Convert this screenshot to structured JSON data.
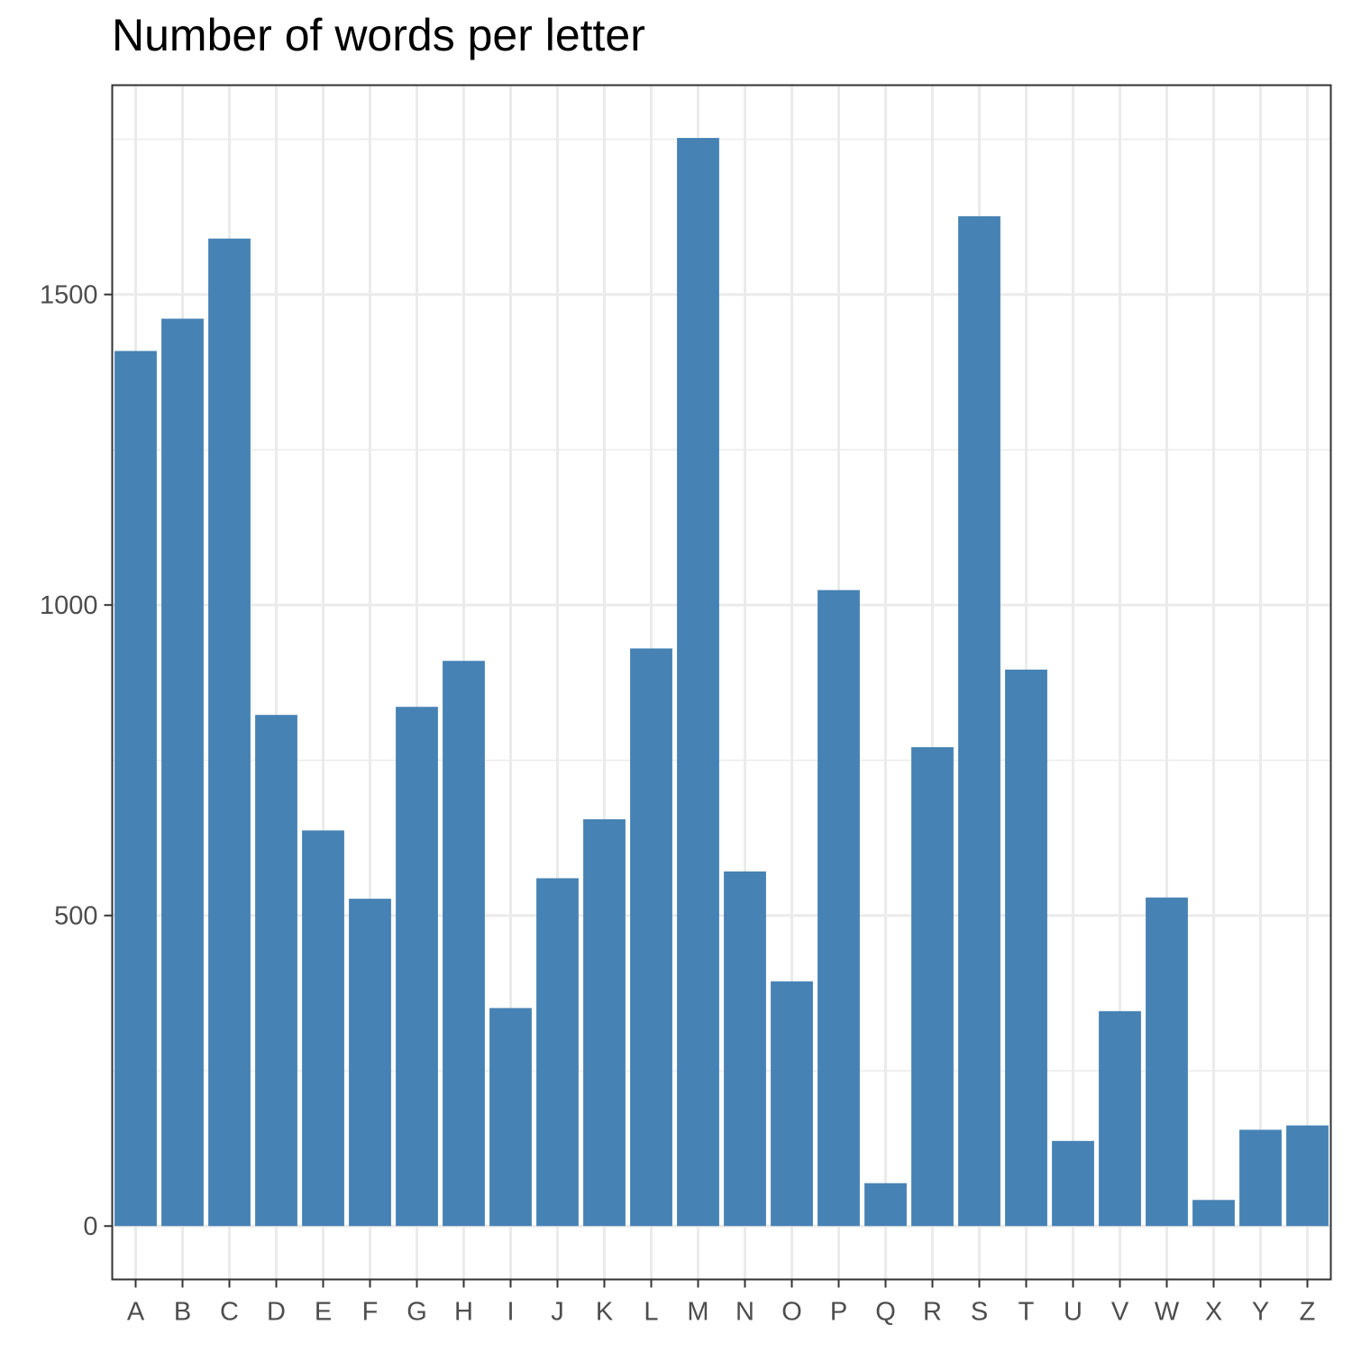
{
  "chart_data": {
    "type": "bar",
    "title": "Number of words per letter",
    "xlabel": "",
    "ylabel": "",
    "categories": [
      "A",
      "B",
      "C",
      "D",
      "E",
      "F",
      "G",
      "H",
      "I",
      "J",
      "K",
      "L",
      "M",
      "N",
      "O",
      "P",
      "Q",
      "R",
      "S",
      "T",
      "U",
      "V",
      "W",
      "X",
      "Y",
      "Z"
    ],
    "values": [
      1409,
      1461,
      1590,
      823,
      637,
      527,
      836,
      910,
      351,
      560,
      655,
      930,
      1752,
      571,
      394,
      1024,
      69,
      771,
      1626,
      896,
      137,
      346,
      529,
      42,
      155,
      162
    ],
    "ylim": [
      -86,
      1837
    ],
    "yticks": [
      0,
      500,
      1000,
      1500
    ],
    "ytick_labels": [
      "0",
      "500",
      "1000",
      "1500"
    ],
    "grid": true,
    "bar_color": "#4682B4",
    "panel_border_color": "#333333",
    "grid_color": "#EBEBEB"
  }
}
